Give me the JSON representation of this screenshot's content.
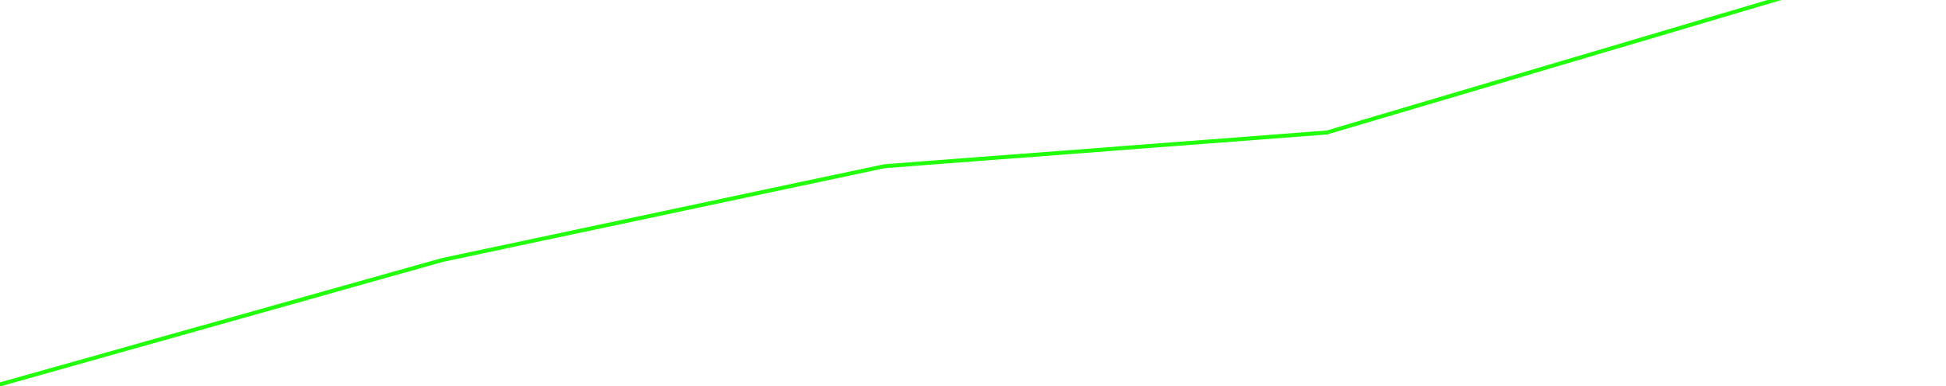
{
  "chart_data": {
    "type": "line",
    "x": [
      0,
      1,
      2,
      3,
      4
    ],
    "series": [
      {
        "values": [
          0,
          32.5,
          57,
          65.8,
          100
        ],
        "color": "#22ff0a"
      }
    ],
    "xlim": [
      0,
      4.4
    ],
    "ylim": [
      0,
      100
    ],
    "grid": false,
    "legend": "none"
  }
}
